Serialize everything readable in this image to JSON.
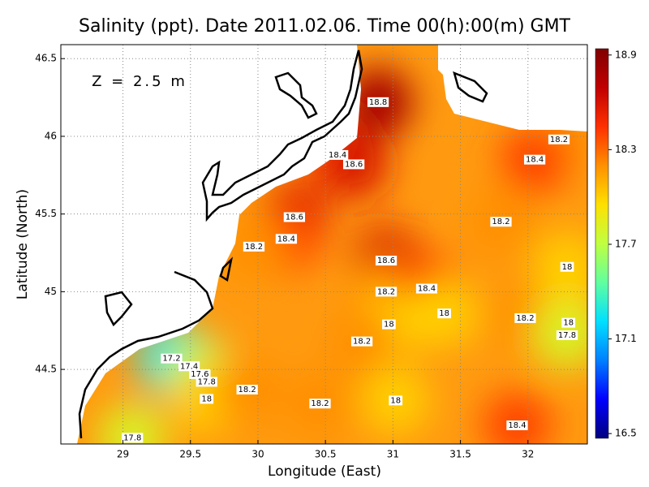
{
  "chart_data": {
    "type": "contour-map",
    "title": "Salinity (ppt). Date 2011.02.06. Time 00(h):00(m) GMT",
    "subtitle": "Z = 2.5 m",
    "x_label": "Longitude (East)",
    "y_label": "Latitude (North)",
    "xlim": [
      28.54,
      32.44
    ],
    "ylim": [
      44.02,
      46.59
    ],
    "xticks": [
      29,
      29.5,
      30,
      30.5,
      31,
      31.5,
      32
    ],
    "yticks": [
      44.5,
      45,
      45.5,
      46,
      46.5
    ],
    "grid": true,
    "clim": [
      16.47,
      18.94
    ],
    "cticks": [
      16.5,
      17.1,
      17.7,
      18.3,
      18.9
    ],
    "colormap": [
      "#00007f",
      "#0000ff",
      "#0080ff",
      "#00e0ff",
      "#60ffa0",
      "#c0ff40",
      "#ffe000",
      "#ff9000",
      "#ff3000",
      "#c00000",
      "#800000"
    ],
    "contour_labels": [
      {
        "x": 30.89,
        "y": 46.22,
        "value": 18.8
      },
      {
        "x": 30.59,
        "y": 45.88,
        "value": 18.4
      },
      {
        "x": 30.71,
        "y": 45.82,
        "value": 18.6
      },
      {
        "x": 32.23,
        "y": 45.98,
        "value": 18.2
      },
      {
        "x": 32.05,
        "y": 45.85,
        "value": 18.4
      },
      {
        "x": 30.27,
        "y": 45.48,
        "value": 18.6
      },
      {
        "x": 31.8,
        "y": 45.45,
        "value": 18.2
      },
      {
        "x": 30.21,
        "y": 45.34,
        "value": 18.4
      },
      {
        "x": 29.97,
        "y": 45.29,
        "value": 18.2
      },
      {
        "x": 30.95,
        "y": 45.2,
        "value": 18.6
      },
      {
        "x": 32.29,
        "y": 45.16,
        "value": 18
      },
      {
        "x": 30.95,
        "y": 45.0,
        "value": 18.2
      },
      {
        "x": 31.25,
        "y": 45.02,
        "value": 18.4
      },
      {
        "x": 31.38,
        "y": 44.86,
        "value": 18
      },
      {
        "x": 31.98,
        "y": 44.83,
        "value": 18.2
      },
      {
        "x": 32.3,
        "y": 44.8,
        "value": 18
      },
      {
        "x": 30.97,
        "y": 44.79,
        "value": 18
      },
      {
        "x": 32.29,
        "y": 44.72,
        "value": 17.8
      },
      {
        "x": 30.77,
        "y": 44.68,
        "value": 18.2
      },
      {
        "x": 29.36,
        "y": 44.57,
        "value": 17.2
      },
      {
        "x": 29.49,
        "y": 44.52,
        "value": 17.4
      },
      {
        "x": 29.57,
        "y": 44.47,
        "value": 17.6
      },
      {
        "x": 29.62,
        "y": 44.42,
        "value": 17.8
      },
      {
        "x": 29.62,
        "y": 44.31,
        "value": 18
      },
      {
        "x": 29.92,
        "y": 44.37,
        "value": 18.2
      },
      {
        "x": 30.46,
        "y": 44.28,
        "value": 18.2
      },
      {
        "x": 31.02,
        "y": 44.3,
        "value": 18
      },
      {
        "x": 31.92,
        "y": 44.14,
        "value": 18.4
      },
      {
        "x": 29.07,
        "y": 44.06,
        "value": 17.8
      }
    ]
  }
}
